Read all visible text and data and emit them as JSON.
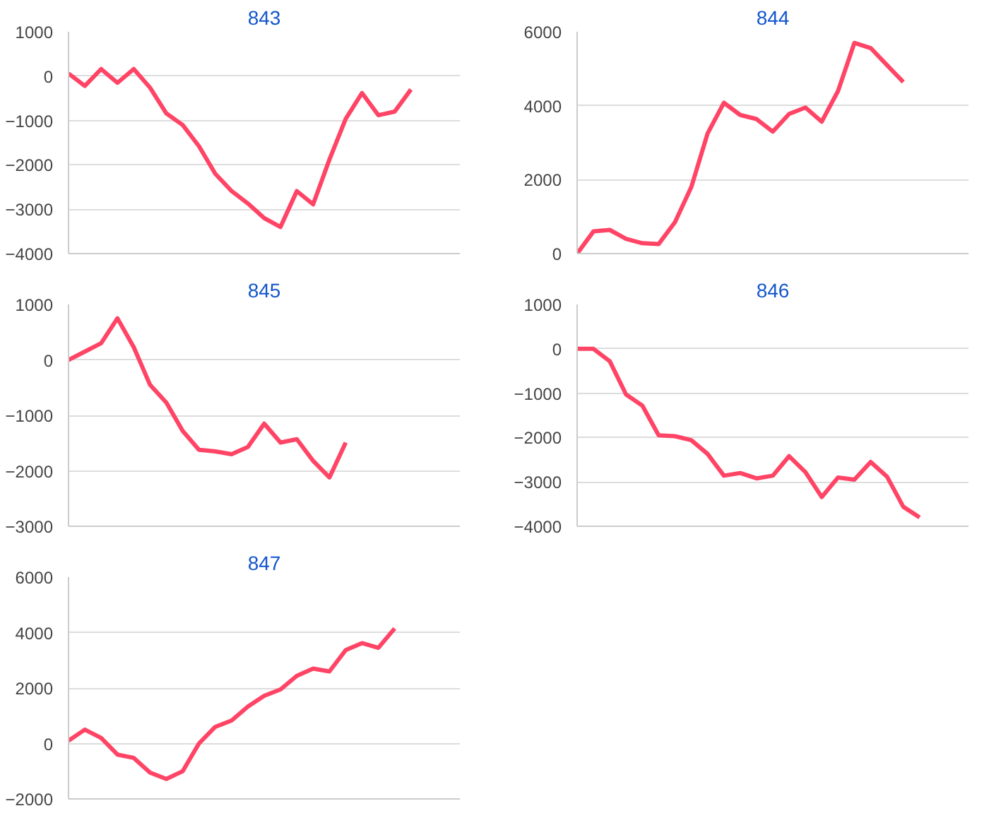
{
  "chart_data": [
    {
      "type": "line",
      "title": "843",
      "categories": [
        null,
        null,
        null,
        null,
        null,
        null,
        null,
        null,
        null,
        null,
        null,
        null,
        null,
        null,
        null,
        null,
        null,
        null,
        null,
        null,
        null,
        null,
        null,
        null,
        null
      ],
      "ylim": [
        -4000,
        1000
      ],
      "yticks": [
        -4000,
        -3000,
        -2000,
        -1000,
        0,
        1000
      ],
      "grid": "y",
      "tick_labels": "y",
      "series": [
        {
          "color": "#ff4466",
          "values": [
            60,
            -220,
            160,
            -150,
            160,
            -260,
            -840,
            -1100,
            -1580,
            -2200,
            -2590,
            -2870,
            -3200,
            -3400,
            -2590,
            -2890,
            -1880,
            -960,
            -380,
            -880,
            -800,
            -300,
            null,
            null,
            null
          ]
        }
      ]
    },
    {
      "type": "line",
      "title": "844",
      "categories": [
        null,
        null,
        null,
        null,
        null,
        null,
        null,
        null,
        null,
        null,
        null,
        null,
        null,
        null,
        null,
        null,
        null,
        null,
        null,
        null,
        null,
        null,
        null,
        null,
        null
      ],
      "ylim": [
        0,
        6000
      ],
      "yticks": [
        0,
        2000,
        4000,
        6000
      ],
      "grid": "y",
      "tick_labels": "y",
      "series": [
        {
          "color": "#ff4466",
          "values": [
            0,
            600,
            640,
            400,
            280,
            260,
            850,
            1800,
            3250,
            4080,
            3750,
            3640,
            3300,
            3780,
            3950,
            3570,
            4400,
            5700,
            5560,
            5100,
            4640,
            null,
            null,
            null,
            null
          ]
        }
      ]
    },
    {
      "type": "line",
      "title": "845",
      "categories": [
        null,
        null,
        null,
        null,
        null,
        null,
        null,
        null,
        null,
        null,
        null,
        null,
        null,
        null,
        null,
        null,
        null,
        null,
        null,
        null,
        null,
        null,
        null,
        null,
        null
      ],
      "ylim": [
        -3000,
        1000
      ],
      "yticks": [
        -3000,
        -2000,
        -1000,
        0,
        1000
      ],
      "grid": "y",
      "tick_labels": "y",
      "series": [
        {
          "color": "#ff4466",
          "values": [
            0,
            150,
            300,
            750,
            230,
            -450,
            -770,
            -1280,
            -1620,
            -1650,
            -1700,
            -1570,
            -1150,
            -1490,
            -1430,
            -1820,
            -2120,
            -1490,
            null,
            null,
            null,
            null,
            null,
            null,
            null
          ]
        }
      ]
    },
    {
      "type": "line",
      "title": "846",
      "categories": [
        null,
        null,
        null,
        null,
        null,
        null,
        null,
        null,
        null,
        null,
        null,
        null,
        null,
        null,
        null,
        null,
        null,
        null,
        null,
        null,
        null,
        null,
        null,
        null,
        null
      ],
      "ylim": [
        -4000,
        1000
      ],
      "yticks": [
        -4000,
        -3000,
        -2000,
        -1000,
        0,
        1000
      ],
      "grid": "y",
      "tick_labels": "y",
      "series": [
        {
          "color": "#ff4466",
          "values": [
            0,
            0,
            -280,
            -1030,
            -1280,
            -1950,
            -1970,
            -2060,
            -2370,
            -2860,
            -2800,
            -2920,
            -2860,
            -2420,
            -2780,
            -3340,
            -2900,
            -2950,
            -2550,
            -2880,
            -3560,
            -3800,
            null,
            null,
            null
          ]
        }
      ]
    },
    {
      "type": "line",
      "title": "847",
      "categories": [
        null,
        null,
        null,
        null,
        null,
        null,
        null,
        null,
        null,
        null,
        null,
        null,
        null,
        null,
        null,
        null,
        null,
        null,
        null,
        null,
        null,
        null,
        null,
        null,
        null
      ],
      "ylim": [
        -2000,
        6000
      ],
      "yticks": [
        -2000,
        0,
        2000,
        4000,
        6000
      ],
      "grid": "y",
      "tick_labels": "y",
      "series": [
        {
          "color": "#ff4466",
          "values": [
            100,
            500,
            200,
            -400,
            -520,
            -1050,
            -1280,
            -1000,
            0,
            600,
            830,
            1330,
            1720,
            1950,
            2440,
            2700,
            2600,
            3370,
            3620,
            3450,
            4150,
            null,
            null,
            null,
            null
          ]
        }
      ]
    }
  ]
}
